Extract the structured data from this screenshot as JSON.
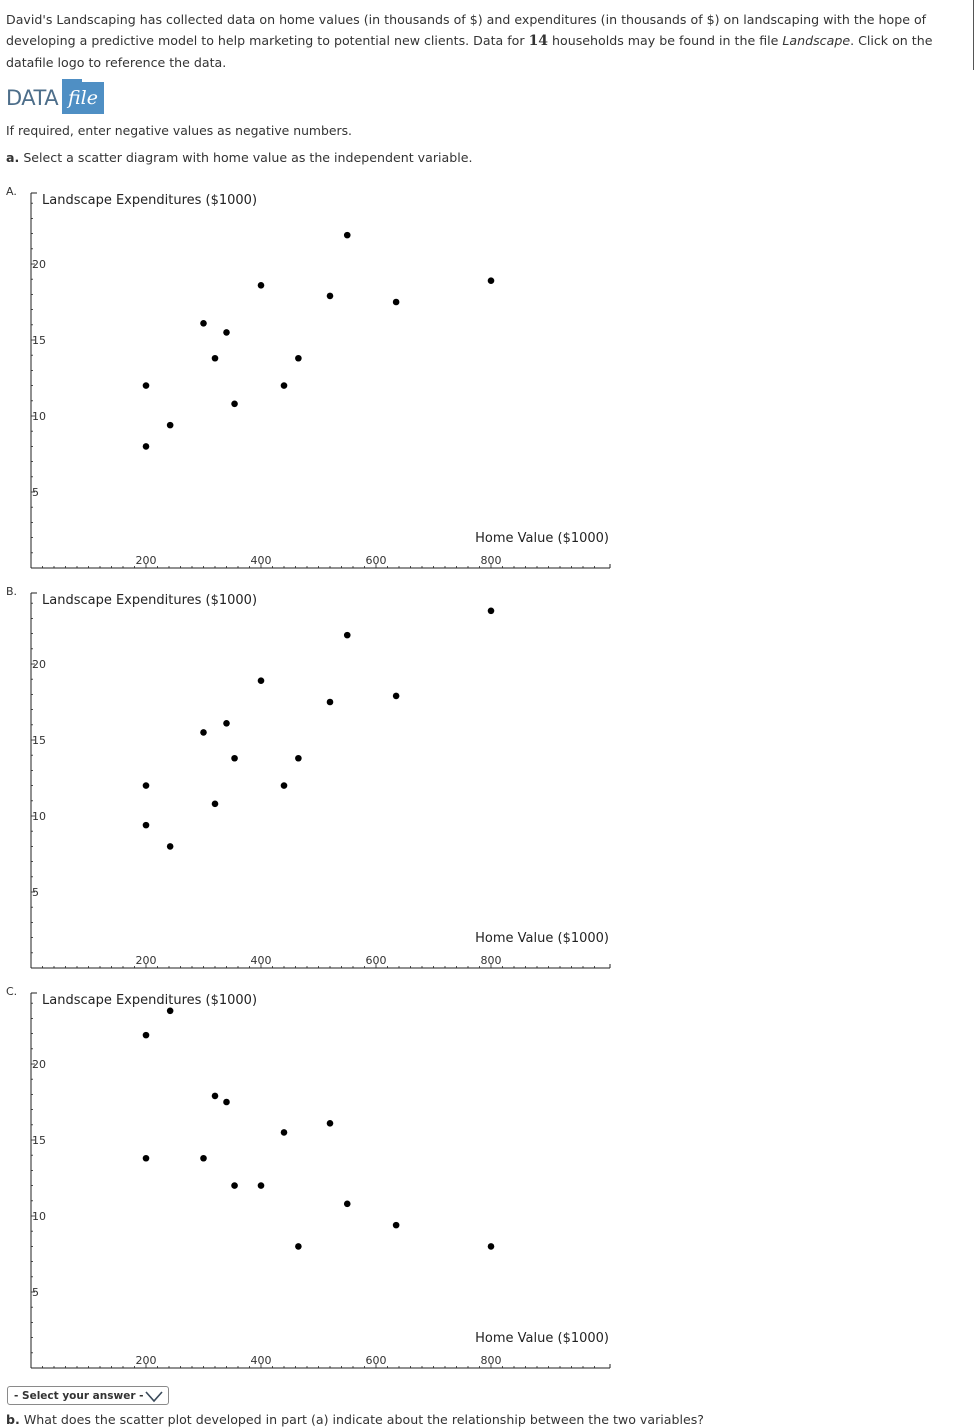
{
  "intro": {
    "text_1": "David's Landscaping has collected data on home values (in thousands of $) and expenditures (in thousands of $) on landscaping with the hope of developing a predictive model to help marketing to potential new clients. Data for ",
    "count": "14",
    "text_2": " households may be found in the file ",
    "filename": "Landscape",
    "text_3": ". Click on the datafile logo to reference the data."
  },
  "datafile": {
    "data_label": "DATA",
    "file_label": "file"
  },
  "note": "If required, enter negative values as negative numbers.",
  "part_a": {
    "letter": "a.",
    "question": "Select a scatter diagram with home value as the independent variable."
  },
  "options": [
    {
      "label": "A.",
      "y_title": "Landscape Expenditures ($1000)",
      "x_title": "Home Value ($1000)"
    },
    {
      "label": "B.",
      "y_title": "Landscape Expenditures ($1000)",
      "x_title": "Home Value ($1000)"
    },
    {
      "label": "C.",
      "y_title": "Landscape Expenditures ($1000)",
      "x_title": "Home Value ($1000)"
    }
  ],
  "chart_data": [
    {
      "type": "scatter",
      "title": "",
      "xlabel": "Home Value ($1000)",
      "ylabel": "Landscape Expenditures ($1000)",
      "xlim": [
        0,
        1000
      ],
      "ylim": [
        0,
        25
      ],
      "xticks": [
        "200",
        "400",
        "600",
        "800"
      ],
      "yticks": [
        "5",
        "10",
        "15",
        "20"
      ],
      "x": [
        200,
        200,
        242,
        300,
        320,
        340,
        354,
        400,
        440,
        465,
        520,
        550,
        635,
        800
      ],
      "y": [
        12.0,
        8.0,
        9.4,
        16.1,
        13.8,
        15.5,
        10.8,
        18.6,
        12.0,
        13.8,
        17.9,
        21.9,
        17.5,
        18.9
      ]
    },
    {
      "type": "scatter",
      "title": "",
      "xlabel": "Home Value ($1000)",
      "ylabel": "Landscape Expenditures ($1000)",
      "xlim": [
        0,
        1000
      ],
      "ylim": [
        0,
        25
      ],
      "xticks": [
        "200",
        "400",
        "600",
        "800"
      ],
      "yticks": [
        "5",
        "10",
        "15",
        "20"
      ],
      "x": [
        200,
        200,
        242,
        300,
        320,
        340,
        354,
        400,
        440,
        465,
        520,
        550,
        635,
        800
      ],
      "y": [
        12.0,
        9.4,
        8.0,
        15.5,
        10.8,
        16.1,
        13.8,
        18.9,
        12.0,
        13.8,
        17.5,
        21.9,
        17.9,
        23.5
      ]
    },
    {
      "type": "scatter",
      "title": "",
      "xlabel": "Home Value ($1000)",
      "ylabel": "Landscape Expenditures ($1000)",
      "xlim": [
        0,
        1000
      ],
      "ylim": [
        0,
        25
      ],
      "xticks": [
        "200",
        "400",
        "600",
        "800"
      ],
      "yticks": [
        "5",
        "10",
        "15",
        "20"
      ],
      "x": [
        200,
        200,
        242,
        300,
        320,
        340,
        354,
        400,
        440,
        465,
        520,
        550,
        635,
        800
      ],
      "y": [
        21.9,
        13.8,
        23.5,
        13.8,
        17.9,
        17.5,
        12.0,
        12.0,
        15.5,
        8.0,
        16.1,
        10.8,
        9.4,
        8.0
      ]
    }
  ],
  "select": {
    "placeholder": "- Select your answer -"
  },
  "part_b": {
    "letter": "b.",
    "question": "What does the scatter plot developed in part (a) indicate about the relationship between the two variables?"
  }
}
